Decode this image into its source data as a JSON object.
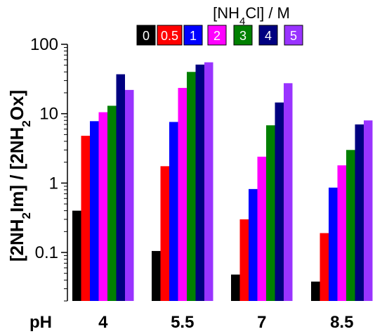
{
  "chart_data": {
    "type": "bar",
    "yscale": "log",
    "ylim": [
      0.02,
      100
    ],
    "ylabel_parts": [
      "[2NH",
      "2",
      "Im] / [2NH",
      "2",
      "Ox]"
    ],
    "yticks": [
      {
        "value": 0.1,
        "label": "0.1"
      },
      {
        "value": 1,
        "label": "1"
      },
      {
        "value": 10,
        "label": "10"
      },
      {
        "value": 100,
        "label": "100"
      }
    ],
    "x_prefix_label": "pH",
    "categories": [
      "4",
      "5.5",
      "7",
      "8.5"
    ],
    "legend": {
      "title_parts": [
        "[NH",
        "4",
        "Cl] / M"
      ],
      "placement": "top-right"
    },
    "series": [
      {
        "name": "0",
        "color": "#000000",
        "values": [
          0.4,
          0.105,
          0.048,
          0.038
        ]
      },
      {
        "name": "0.5",
        "color": "#ff0000",
        "values": [
          4.8,
          1.75,
          0.3,
          0.19
        ]
      },
      {
        "name": "1",
        "color": "#0000ff",
        "values": [
          7.8,
          7.6,
          0.82,
          0.86
        ]
      },
      {
        "name": "2",
        "color": "#ff00ff",
        "values": [
          10.5,
          23.5,
          2.4,
          1.8
        ]
      },
      {
        "name": "3",
        "color": "#008000",
        "values": [
          13,
          40,
          6.8,
          3.0
        ]
      },
      {
        "name": "4",
        "color": "#000080",
        "values": [
          37,
          51,
          14.5,
          7.0
        ]
      },
      {
        "name": "5",
        "color": "#9933ff",
        "values": [
          22,
          55,
          27.5,
          8.0
        ]
      }
    ]
  }
}
